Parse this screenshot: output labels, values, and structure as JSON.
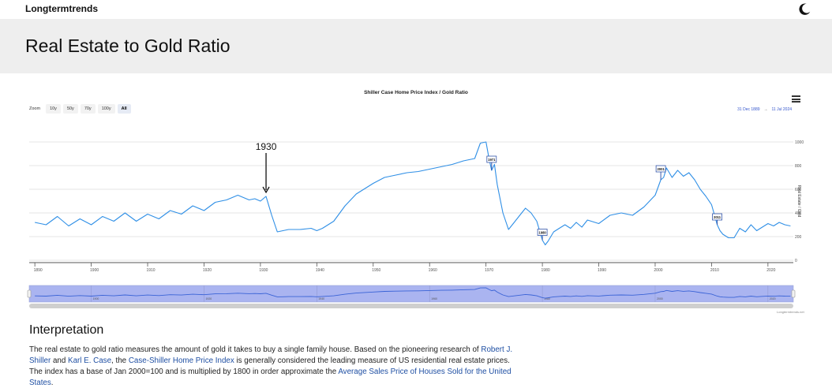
{
  "header": {
    "brand": "Longtermtrends",
    "theme_icon": "moon-icon"
  },
  "page": {
    "title": "Real Estate to Gold Ratio"
  },
  "zoom": {
    "label": "Zoom",
    "buttons": [
      "10y",
      "50y",
      "70y",
      "100y",
      "All"
    ],
    "active": "All"
  },
  "range": {
    "from": "31 Dec 1889",
    "arrow": "→",
    "to": "11 Jul 2024"
  },
  "colors": {
    "line": "#2f8fe6",
    "navigator_fill": "#aab4f0",
    "navigator_line": "#3a63d6"
  },
  "chart_data": {
    "type": "line",
    "title": "Shiller Case Home Price Index / Gold Ratio",
    "ylabel": "Real Estate / Gold",
    "xlim": [
      1889,
      2024.5
    ],
    "ylim": [
      0,
      1000
    ],
    "y_ticks": [
      0,
      200,
      400,
      600,
      800,
      1000
    ],
    "x_ticks": [
      1890,
      1900,
      1910,
      1920,
      1930,
      1940,
      1950,
      1960,
      1970,
      1980,
      1990,
      2000,
      2010,
      2020
    ],
    "navigator_ticks": [
      1900,
      1920,
      1940,
      1960,
      1980,
      2000,
      2020
    ],
    "grid": true,
    "series": [
      {
        "x": [
          1890,
          1892,
          1894,
          1896,
          1898,
          1900,
          1902,
          1904,
          1906,
          1908,
          1910,
          1912,
          1914,
          1916,
          1918,
          1920,
          1922,
          1924,
          1926,
          1928,
          1929,
          1930,
          1931,
          1932,
          1933,
          1934,
          1935,
          1937,
          1939,
          1940,
          1941,
          1943,
          1945,
          1947,
          1950,
          1952,
          1954,
          1956,
          1958,
          1960,
          1962,
          1964,
          1966,
          1968,
          1969,
          1970,
          1970.5,
          1971,
          1971.5,
          1972,
          1973,
          1974,
          1975,
          1976,
          1977,
          1978,
          1979,
          1980,
          1980.5,
          1981,
          1982,
          1983,
          1984,
          1985,
          1986,
          1987,
          1988,
          1990,
          1992,
          1994,
          1996,
          1998,
          2000,
          2001,
          2001.5,
          2002,
          2003,
          2004,
          2005,
          2006,
          2007,
          2008,
          2009,
          2010,
          2011,
          2011.5,
          2012,
          2013,
          2014,
          2015,
          2016,
          2017,
          2018,
          2019,
          2020,
          2021,
          2022,
          2023,
          2024
        ],
        "y": [
          320,
          300,
          370,
          290,
          350,
          300,
          370,
          330,
          400,
          330,
          390,
          350,
          420,
          390,
          460,
          420,
          490,
          510,
          550,
          510,
          520,
          500,
          540,
          380,
          240,
          250,
          260,
          260,
          270,
          250,
          270,
          330,
          460,
          560,
          650,
          700,
          720,
          740,
          750,
          770,
          790,
          810,
          840,
          860,
          990,
          1000,
          870,
          760,
          810,
          640,
          400,
          260,
          320,
          380,
          440,
          400,
          330,
          170,
          130,
          160,
          240,
          270,
          300,
          270,
          320,
          280,
          340,
          310,
          380,
          400,
          380,
          450,
          550,
          680,
          700,
          780,
          700,
          760,
          710,
          740,
          680,
          600,
          540,
          470,
          300,
          250,
          220,
          190,
          190,
          270,
          240,
          300,
          250,
          280,
          310,
          290,
          320,
          300,
          290
        ]
      }
    ],
    "flags": [
      {
        "year": "1971",
        "x": 1971
      },
      {
        "year": "1980",
        "x": 1980
      },
      {
        "year": "2001",
        "x": 2001
      },
      {
        "year": "2011",
        "x": 2011
      }
    ],
    "annotation": {
      "label": "1930",
      "x": 1931
    },
    "credit": "Longtermtrends.net"
  },
  "interpretation": {
    "heading": "Interpretation",
    "text1": "The real estate to gold ratio measures the amount of gold it takes to buy a single family house. Based on the pioneering research of ",
    "link1": "Robert J. Shiller",
    "text2": " and ",
    "link2": "Karl E. Case",
    "text3": ", the ",
    "link3": "Case-Shiller Home Price Index",
    "text4": " is generally considered the leading measure of US residential real estate prices. The index has a base of Jan 2000=100 and is multiplied by 1800 in order approximate the ",
    "link4": "Average Sales Price of Houses Sold for the United States",
    "text5": "."
  }
}
